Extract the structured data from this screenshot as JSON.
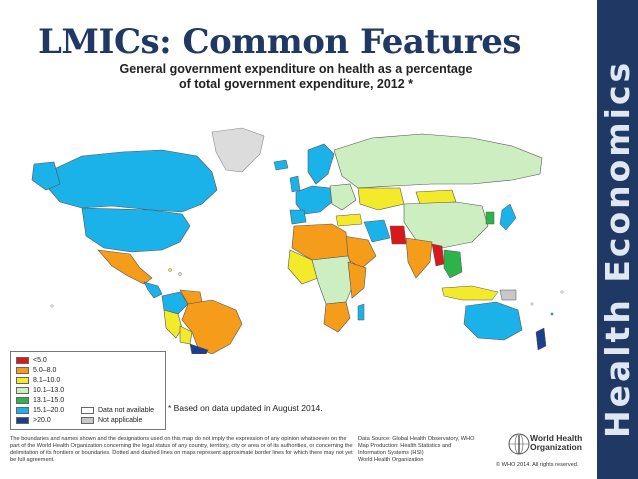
{
  "slide": {
    "title": "LMICs: Common Features",
    "sidebar_text": "Health Economics",
    "sidebar_color": "#1f3864",
    "title_color": "#1f3864"
  },
  "map": {
    "title_line1": "General government expenditure on health as a percentage",
    "title_line2": "of total government expenditure, 2012 *",
    "footnote": "* Based on data updated in August 2014.",
    "legend": [
      {
        "label": "<5.0",
        "color": "#d7191c"
      },
      {
        "label": "5.0–8.0",
        "color": "#f59c1a"
      },
      {
        "label": "8.1–10.0",
        "color": "#f2ea2a"
      },
      {
        "label": "10.1–13.0",
        "color": "#cdeec0"
      },
      {
        "label": "13.1–15.0",
        "color": "#2db34a"
      },
      {
        "label": "15.1–20.0",
        "color": "#1ab2e8"
      },
      {
        "label": ">20.0",
        "color": "#1b3f8f"
      }
    ],
    "legend_extra": [
      {
        "label": "Data not available",
        "color": "#ffffff"
      },
      {
        "label": "Not applicable",
        "color": "#c8c8c8"
      }
    ],
    "disclaimer": "The boundaries and names shown and the designations used on this map do not imply the expression of any opinion whatsoever on the part of the World Health Organization concerning the legal status of any country, territory, city or area or of its authorities, or concerning the delimitation of its frontiers or boundaries. Dotted and dashed lines on maps represent approximate border lines for which there may not yet be full agreement.",
    "source_lines": [
      "Data Source: Global Health Observatory, WHO",
      "Map Production: Health Statistics and",
      "Information Systems (HSI)",
      "World Health Organization"
    ],
    "who_line1": "World Health",
    "who_line2": "Organization",
    "copyright": "© WHO 2014. All rights reserved."
  }
}
